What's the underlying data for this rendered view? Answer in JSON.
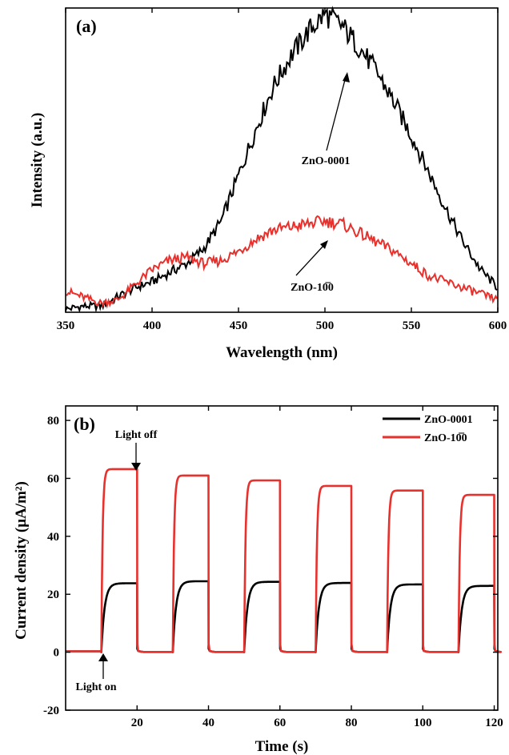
{
  "chart_data": [
    {
      "type": "line",
      "panel_label": "(a)",
      "xlabel": "Wavelength (nm)",
      "ylabel": "Intensity (a.u.)",
      "xlim": [
        350,
        600
      ],
      "ylim": [
        0,
        1
      ],
      "x_ticks": [
        "350",
        "400",
        "450",
        "500",
        "550",
        "600"
      ],
      "y_ticks_shown": false,
      "grid": false,
      "series": [
        {
          "name": "ZnO-0001",
          "color": "#000000",
          "x": [
            350,
            360,
            370,
            380,
            390,
            400,
            410,
            420,
            430,
            440,
            450,
            460,
            470,
            480,
            490,
            500,
            510,
            520,
            530,
            540,
            550,
            560,
            570,
            580,
            590,
            600
          ],
          "y": [
            0.01,
            0.02,
            0.02,
            0.05,
            0.08,
            0.1,
            0.13,
            0.16,
            0.21,
            0.3,
            0.45,
            0.6,
            0.74,
            0.84,
            0.92,
            0.98,
            0.94,
            0.87,
            0.79,
            0.69,
            0.58,
            0.46,
            0.34,
            0.23,
            0.14,
            0.08
          ]
        },
        {
          "name": "ZnO-10̅0",
          "color": "#e8302c",
          "x": [
            350,
            360,
            370,
            380,
            390,
            400,
            410,
            420,
            430,
            440,
            450,
            460,
            470,
            480,
            490,
            500,
            510,
            520,
            530,
            540,
            550,
            560,
            570,
            580,
            590,
            600
          ],
          "y": [
            0.07,
            0.05,
            0.03,
            0.04,
            0.09,
            0.14,
            0.17,
            0.18,
            0.16,
            0.17,
            0.2,
            0.24,
            0.27,
            0.28,
            0.29,
            0.3,
            0.29,
            0.26,
            0.23,
            0.2,
            0.16,
            0.12,
            0.1,
            0.08,
            0.06,
            0.04
          ]
        }
      ],
      "annotations": [
        {
          "text": "ZnO-0001",
          "points_to_x": 510
        },
        {
          "text": "ZnO-10̅0",
          "points_to_x": 500
        }
      ]
    },
    {
      "type": "line",
      "panel_label": "(b)",
      "xlabel": "Time (s)",
      "ylabel": "Current density (μA/m²)",
      "xlim": [
        0,
        121
      ],
      "ylim": [
        -20,
        85
      ],
      "x_ticks": [
        "20",
        "40",
        "60",
        "80",
        "100",
        "120"
      ],
      "y_ticks": [
        "-20",
        "0",
        "20",
        "40",
        "60",
        "80"
      ],
      "grid": false,
      "legend_position": "top-right",
      "on_intervals": [
        [
          10,
          20
        ],
        [
          30,
          40
        ],
        [
          50,
          60
        ],
        [
          70,
          80
        ],
        [
          90,
          100
        ],
        [
          110,
          120
        ]
      ],
      "series": [
        {
          "name": "ZnO-0001",
          "color": "#000000",
          "plateau_values": [
            23.8,
            24.5,
            24.3,
            23.9,
            23.4,
            22.9
          ]
        },
        {
          "name": "ZnO-10̅0",
          "color": "#e8302c",
          "plateau_values": [
            63.2,
            61.0,
            59.3,
            57.4,
            55.8,
            54.3
          ]
        }
      ],
      "annotations": [
        {
          "text": "Light off",
          "points_to_x": 20
        },
        {
          "text": "Light on",
          "points_to_x": 10
        }
      ]
    }
  ]
}
